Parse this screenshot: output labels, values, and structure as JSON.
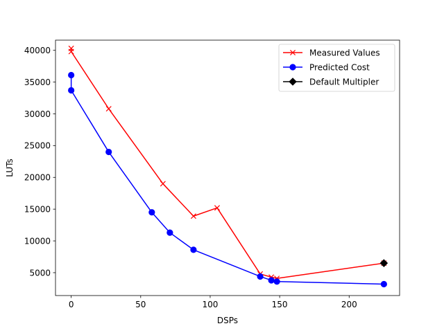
{
  "chart_data": {
    "type": "line",
    "title": "",
    "xlabel": "DSPs",
    "ylabel": "LUTs",
    "xlim": [
      -11.3,
      236.3
    ],
    "ylim": [
      1400,
      41600
    ],
    "xticks": [
      0,
      50,
      100,
      150,
      200
    ],
    "yticks": [
      5000,
      10000,
      15000,
      20000,
      25000,
      30000,
      35000,
      40000
    ],
    "grid": false,
    "legend_position": "top-right",
    "series": [
      {
        "name": "Measured Values",
        "color": "#ff0000",
        "marker": "x",
        "points": [
          [
            0,
            40300
          ],
          [
            0,
            39800
          ],
          [
            27,
            30800
          ],
          [
            66,
            19000
          ],
          [
            88,
            13900
          ],
          [
            105,
            15200
          ],
          [
            136,
            4800
          ],
          [
            144,
            4300
          ],
          [
            148,
            4100
          ],
          [
            225,
            6500
          ]
        ]
      },
      {
        "name": "Predicted Cost",
        "color": "#0000ff",
        "marker": "circle",
        "points": [
          [
            0,
            36100
          ],
          [
            0,
            33700
          ],
          [
            27,
            24000
          ],
          [
            58,
            14500
          ],
          [
            71,
            11300
          ],
          [
            88,
            8600
          ],
          [
            136,
            4400
          ],
          [
            144,
            3800
          ],
          [
            148,
            3600
          ],
          [
            225,
            3200
          ]
        ]
      },
      {
        "name": "Default Multipler",
        "color": "#000000",
        "marker": "diamond",
        "points": [
          [
            225,
            6500
          ]
        ]
      }
    ]
  }
}
